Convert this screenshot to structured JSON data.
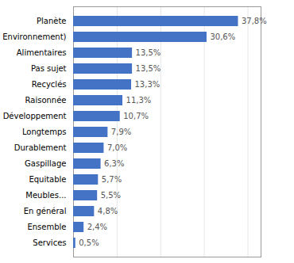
{
  "chart_data": {
    "type": "bar",
    "orientation": "horizontal",
    "categories": [
      "Planète",
      "Environnement)",
      "Alimentaires",
      "Pas sujet",
      "Recyclés",
      "Raisonnée",
      "Développement",
      "Longtemps",
      "Durablement",
      "Gaspillage",
      "Equitable",
      "Meubles...",
      "En général",
      "Ensemble",
      "Services"
    ],
    "values": [
      37.8,
      30.6,
      13.5,
      13.5,
      13.3,
      11.3,
      10.7,
      7.9,
      7.0,
      6.3,
      5.7,
      5.5,
      4.8,
      2.4,
      0.5
    ],
    "value_labels": [
      "37,8%",
      "30,6%",
      "13,5%",
      "13,5%",
      "13,3%",
      "11,3%",
      "10,7%",
      "7,9%",
      "7,0%",
      "6,3%",
      "5,7%",
      "5,5%",
      "4,8%",
      "2,4%",
      "0,5%"
    ],
    "color": "#4472C4",
    "xlim": [
      0,
      43
    ],
    "xticks": [
      0,
      10,
      20,
      30,
      40
    ],
    "grid": true,
    "data_labels": true,
    "tick_labels": "y"
  }
}
